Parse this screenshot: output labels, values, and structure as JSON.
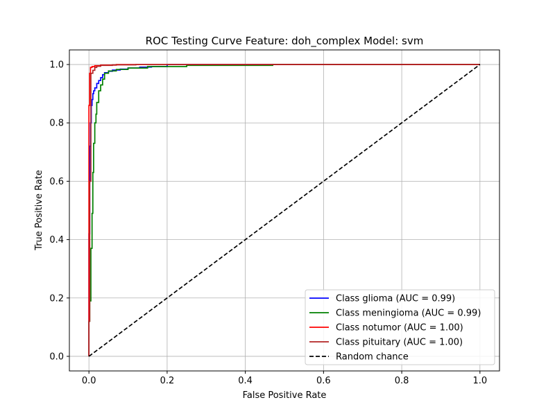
{
  "chart_data": {
    "type": "line",
    "title": "ROC Testing Curve Feature: doh_complex Model: svm",
    "xlabel": "False Positive Rate",
    "ylabel": "True Positive Rate",
    "xlim": [
      -0.05,
      1.05
    ],
    "ylim": [
      -0.05,
      1.05
    ],
    "xticks": [
      0.0,
      0.2,
      0.4,
      0.6,
      0.8,
      1.0
    ],
    "yticks": [
      0.0,
      0.2,
      0.4,
      0.6,
      0.8,
      1.0
    ],
    "xtick_labels": [
      "0.0",
      "0.2",
      "0.4",
      "0.6",
      "0.8",
      "1.0"
    ],
    "ytick_labels": [
      "0.0",
      "0.2",
      "0.4",
      "0.6",
      "0.8",
      "1.0"
    ],
    "grid": true,
    "legend_position": "bottom-right",
    "series": [
      {
        "name": "Class glioma (AUC = 0.99)",
        "color": "#0000ff",
        "dash": "solid",
        "x": [
          0.0,
          0.0,
          0.002,
          0.002,
          0.004,
          0.004,
          0.006,
          0.006,
          0.008,
          0.008,
          0.01,
          0.01,
          0.012,
          0.012,
          0.015,
          0.015,
          0.02,
          0.02,
          0.025,
          0.025,
          0.03,
          0.03,
          0.035,
          0.035,
          0.04,
          0.04,
          0.05,
          0.05,
          0.06,
          0.06,
          0.08,
          0.08,
          0.1,
          0.1,
          0.13,
          0.13,
          0.16,
          0.16,
          0.2,
          0.2,
          1.0
        ],
        "y": [
          0.0,
          0.42,
          0.42,
          0.72,
          0.72,
          0.8,
          0.8,
          0.86,
          0.86,
          0.88,
          0.88,
          0.9,
          0.9,
          0.91,
          0.91,
          0.92,
          0.92,
          0.935,
          0.935,
          0.945,
          0.945,
          0.955,
          0.955,
          0.965,
          0.965,
          0.972,
          0.972,
          0.977,
          0.977,
          0.981,
          0.981,
          0.984,
          0.984,
          0.988,
          0.988,
          0.991,
          0.991,
          0.993,
          0.993,
          1.0,
          1.0
        ]
      },
      {
        "name": "Class meningioma (AUC = 0.99)",
        "color": "#008000",
        "dash": "solid",
        "x": [
          0.0,
          0.0,
          0.002,
          0.002,
          0.005,
          0.005,
          0.008,
          0.008,
          0.01,
          0.01,
          0.012,
          0.012,
          0.015,
          0.015,
          0.018,
          0.018,
          0.02,
          0.02,
          0.025,
          0.025,
          0.03,
          0.03,
          0.035,
          0.035,
          0.04,
          0.04,
          0.05,
          0.05,
          0.07,
          0.07,
          0.1,
          0.1,
          0.15,
          0.15,
          0.25,
          0.25,
          0.47,
          0.47,
          1.0
        ],
        "y": [
          0.0,
          0.12,
          0.12,
          0.19,
          0.19,
          0.37,
          0.37,
          0.49,
          0.49,
          0.63,
          0.63,
          0.73,
          0.73,
          0.8,
          0.8,
          0.83,
          0.83,
          0.87,
          0.87,
          0.91,
          0.91,
          0.93,
          0.93,
          0.95,
          0.95,
          0.97,
          0.97,
          0.978,
          0.978,
          0.983,
          0.983,
          0.988,
          0.988,
          0.993,
          0.993,
          0.997,
          0.997,
          1.0,
          1.0
        ]
      },
      {
        "name": "Class notumor (AUC = 1.00)",
        "color": "#ff0000",
        "dash": "solid",
        "x": [
          0.0,
          0.0,
          0.002,
          0.002,
          0.004,
          0.004,
          0.008,
          0.008,
          0.015,
          0.015,
          0.03,
          0.03,
          0.07,
          0.07,
          1.0
        ],
        "y": [
          0.0,
          0.86,
          0.86,
          0.97,
          0.97,
          0.99,
          0.99,
          0.993,
          0.993,
          0.996,
          0.996,
          0.998,
          0.998,
          1.0,
          1.0
        ]
      },
      {
        "name": "Class pituitary (AUC = 1.00)",
        "color": "#b22222",
        "dash": "solid",
        "x": [
          0.0,
          0.0,
          0.002,
          0.002,
          0.005,
          0.005,
          0.01,
          0.01,
          0.015,
          0.015,
          0.02,
          0.02,
          0.03,
          0.03,
          0.06,
          0.06,
          0.12,
          0.12,
          1.0
        ],
        "y": [
          0.0,
          0.12,
          0.12,
          0.6,
          0.6,
          0.97,
          0.97,
          0.98,
          0.98,
          0.99,
          0.99,
          0.994,
          0.994,
          0.997,
          0.997,
          0.999,
          0.999,
          1.0,
          1.0
        ]
      },
      {
        "name": "Random chance",
        "color": "#000000",
        "dash": "dashed",
        "x": [
          0.0,
          1.0
        ],
        "y": [
          0.0,
          1.0
        ]
      }
    ]
  }
}
